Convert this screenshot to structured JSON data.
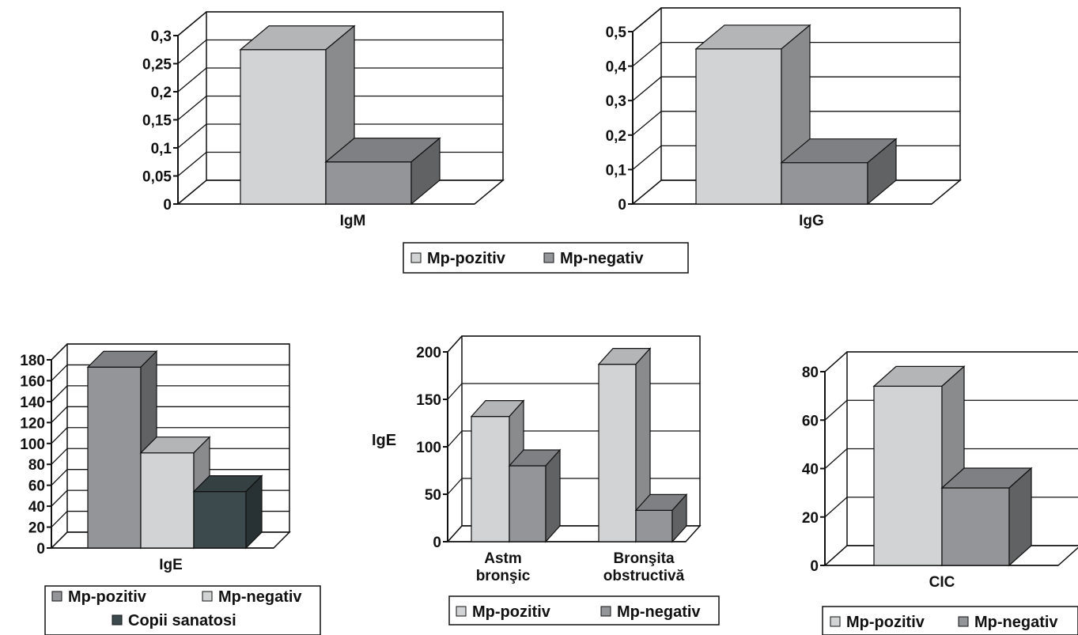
{
  "chart_data": [
    {
      "type": "bar",
      "categories": [
        "IgM"
      ],
      "series": [
        {
          "name": "Mp-pozitiv",
          "values": [
            0.275
          ]
        },
        {
          "name": "Mp-negativ",
          "values": [
            0.075
          ]
        }
      ],
      "yticks": [
        "0",
        "0,05",
        "0,1",
        "0,15",
        "0,2",
        "0,25",
        "0,3"
      ],
      "ylim": [
        0,
        0.3
      ],
      "ylabel": "",
      "legend": "bottom",
      "grid": true
    },
    {
      "type": "bar",
      "categories": [
        "IgG"
      ],
      "series": [
        {
          "name": "Mp-pozitiv",
          "values": [
            0.45
          ]
        },
        {
          "name": "Mp-negativ",
          "values": [
            0.12
          ]
        }
      ],
      "yticks": [
        "0",
        "0,1",
        "0,2",
        "0,3",
        "0,4",
        "0,5"
      ],
      "ylim": [
        0,
        0.5
      ],
      "ylabel": "",
      "legend": "bottom",
      "grid": true
    },
    {
      "type": "bar",
      "categories": [
        "IgE"
      ],
      "series": [
        {
          "name": "Mp-pozitiv",
          "values": [
            173
          ]
        },
        {
          "name": "Mp-negativ",
          "values": [
            91
          ]
        },
        {
          "name": "Copii sanatosi",
          "values": [
            54
          ]
        }
      ],
      "yticks": [
        "0",
        "20",
        "40",
        "60",
        "80",
        "100",
        "120",
        "140",
        "160",
        "180"
      ],
      "ylim": [
        0,
        180
      ],
      "ylabel": "",
      "legend": "bottom",
      "grid": true
    },
    {
      "type": "bar",
      "categories": [
        [
          "Astm",
          "bronşic"
        ],
        [
          "Bronşita",
          "obstructivă"
        ]
      ],
      "series": [
        {
          "name": "Mp-pozitiv",
          "values": [
            132,
            187
          ]
        },
        {
          "name": "Mp-negativ",
          "values": [
            80,
            33
          ]
        }
      ],
      "yticks": [
        "0",
        "50",
        "100",
        "150",
        "200"
      ],
      "ylim": [
        0,
        200
      ],
      "ylabel": "IgE",
      "legend": "bottom",
      "grid": true
    },
    {
      "type": "bar",
      "categories": [
        "CIC"
      ],
      "series": [
        {
          "name": "Mp-pozitiv",
          "values": [
            74
          ]
        },
        {
          "name": "Mp-negativ",
          "values": [
            32
          ]
        }
      ],
      "yticks": [
        "0",
        "20",
        "40",
        "60",
        "80"
      ],
      "ylim": [
        0,
        80
      ],
      "ylabel": "",
      "legend": "bottom",
      "grid": true
    }
  ],
  "colors": {
    "light": "#d1d3d4",
    "mid": "#939598",
    "dark": "#3d4a4d"
  }
}
